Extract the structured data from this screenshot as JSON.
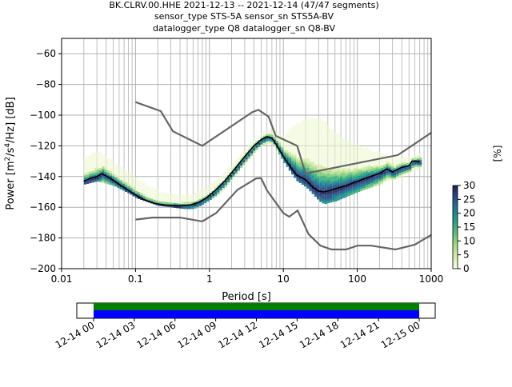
{
  "chart_data": {
    "type": "heatmap",
    "title_lines": [
      "BK.CLRV.00.HHE   2021-12-13 -- 2021-12-14  (47/47 segments)",
      "sensor_type STS-5A sensor_sn STS5A-BV",
      "datalogger_type Q8 datalogger_sn Q8-BV"
    ],
    "xlabel": "Period [s]",
    "ylabel_parts": [
      "Power [m",
      "2",
      "/s",
      "4",
      "/Hz] [dB]"
    ],
    "xscale": "log",
    "xlim": [
      0.01,
      1000
    ],
    "ylim": [
      -200,
      -50
    ],
    "x_ticks": [
      {
        "value": 0.01,
        "label": "0.01"
      },
      {
        "value": 0.1,
        "label": "0.1"
      },
      {
        "value": 1,
        "label": "1"
      },
      {
        "value": 10,
        "label": "10"
      },
      {
        "value": 100,
        "label": "100"
      },
      {
        "value": 1000,
        "label": "1000"
      }
    ],
    "y_ticks": [
      {
        "value": -60,
        "label": "−60"
      },
      {
        "value": -80,
        "label": "−80"
      },
      {
        "value": -100,
        "label": "−100"
      },
      {
        "value": -120,
        "label": "−120"
      },
      {
        "value": -140,
        "label": "−140"
      },
      {
        "value": -160,
        "label": "−160"
      },
      {
        "value": -180,
        "label": "−180"
      },
      {
        "value": -200,
        "label": "−200"
      }
    ],
    "grid": true,
    "noise_model_high": [
      [
        0.1,
        -91.5
      ],
      [
        0.22,
        -97.4
      ],
      [
        0.32,
        -110.5
      ],
      [
        0.8,
        -120
      ],
      [
        3.8,
        -98
      ],
      [
        4.6,
        -96.5
      ],
      [
        6.3,
        -101
      ],
      [
        7.9,
        -113.5
      ],
      [
        15.4,
        -120
      ],
      [
        20,
        -138
      ],
      [
        354.8,
        -126
      ],
      [
        1000,
        -111.5
      ]
    ],
    "noise_model_low": [
      [
        0.1,
        -168
      ],
      [
        0.17,
        -166.7
      ],
      [
        0.4,
        -166.7
      ],
      [
        0.8,
        -169.2
      ],
      [
        1.24,
        -163.7
      ],
      [
        2.4,
        -148.6
      ],
      [
        4.3,
        -141.2
      ],
      [
        5,
        -141.1
      ],
      [
        6,
        -149
      ],
      [
        10,
        -163.8
      ],
      [
        12,
        -166.2
      ],
      [
        15.6,
        -162.1
      ],
      [
        21.9,
        -177.5
      ],
      [
        31.6,
        -185
      ],
      [
        45,
        -187.5
      ],
      [
        70,
        -187.5
      ],
      [
        101,
        -185
      ],
      [
        154,
        -185
      ],
      [
        328,
        -187.5
      ],
      [
        600,
        -184.4
      ],
      [
        1000,
        -178
      ]
    ],
    "median": [
      [
        0.02,
        -143
      ],
      [
        0.025,
        -141
      ],
      [
        0.03,
        -140
      ],
      [
        0.035,
        -138
      ],
      [
        0.045,
        -141
      ],
      [
        0.06,
        -145
      ],
      [
        0.08,
        -149
      ],
      [
        0.1,
        -152
      ],
      [
        0.13,
        -155
      ],
      [
        0.18,
        -157.5
      ],
      [
        0.25,
        -158.5
      ],
      [
        0.4,
        -159
      ],
      [
        0.55,
        -158.5
      ],
      [
        0.7,
        -157
      ],
      [
        0.9,
        -154
      ],
      [
        1.2,
        -149
      ],
      [
        1.6,
        -143
      ],
      [
        2.2,
        -135
      ],
      [
        3,
        -127
      ],
      [
        4,
        -120
      ],
      [
        5,
        -116
      ],
      [
        6,
        -114
      ],
      [
        7,
        -115
      ],
      [
        8,
        -119
      ],
      [
        10,
        -127
      ],
      [
        13,
        -135
      ],
      [
        15,
        -139
      ],
      [
        20,
        -142
      ],
      [
        25,
        -147
      ],
      [
        30,
        -149.5
      ],
      [
        35,
        -150
      ],
      [
        40,
        -149.5
      ],
      [
        50,
        -148
      ],
      [
        70,
        -146
      ],
      [
        100,
        -143
      ],
      [
        150,
        -140
      ],
      [
        200,
        -138
      ],
      [
        250,
        -135
      ],
      [
        300,
        -137
      ],
      [
        400,
        -134
      ],
      [
        500,
        -133
      ],
      [
        550,
        -130
      ],
      [
        700,
        -130
      ]
    ],
    "psd_band": [
      [
        0.02,
        -145,
        -128
      ],
      [
        0.03,
        -143,
        -124
      ],
      [
        0.05,
        -146,
        -132
      ],
      [
        0.08,
        -151,
        -138
      ],
      [
        0.1,
        -154,
        -142
      ],
      [
        0.15,
        -157,
        -147
      ],
      [
        0.2,
        -159,
        -150
      ],
      [
        0.3,
        -160,
        -152
      ],
      [
        0.45,
        -161,
        -153
      ],
      [
        0.6,
        -161,
        -152
      ],
      [
        0.8,
        -158,
        -149
      ],
      [
        1,
        -155,
        -146
      ],
      [
        1.4,
        -150,
        -141
      ],
      [
        2,
        -142,
        -133
      ],
      [
        3,
        -132,
        -123
      ],
      [
        4,
        -125,
        -116
      ],
      [
        5,
        -120,
        -112
      ],
      [
        6,
        -118,
        -110
      ],
      [
        7,
        -119,
        -110
      ],
      [
        8,
        -123,
        -112
      ],
      [
        10,
        -131,
        -114
      ],
      [
        13,
        -139,
        -108
      ],
      [
        15,
        -143,
        -106
      ],
      [
        20,
        -147,
        -103
      ],
      [
        25,
        -152,
        -102
      ],
      [
        30,
        -156,
        -103
      ],
      [
        35,
        -158,
        -104
      ],
      [
        40,
        -157,
        -108
      ],
      [
        50,
        -156,
        -112
      ],
      [
        70,
        -153,
        -117
      ],
      [
        100,
        -150,
        -121
      ],
      [
        150,
        -147,
        -123
      ],
      [
        200,
        -145,
        -126
      ],
      [
        300,
        -142,
        -128
      ],
      [
        500,
        -138,
        -128
      ],
      [
        700,
        -135,
        -125
      ]
    ],
    "colorbar": {
      "label": "[%]",
      "ticks": [
        0,
        5,
        10,
        15,
        20,
        25,
        30
      ],
      "range": [
        0,
        30
      ]
    },
    "time_axis": {
      "ticks": [
        "12-14 00",
        "12-14 03",
        "12-14 06",
        "12-14 09",
        "12-14 12",
        "12-14 15",
        "12-14 18",
        "12-14 21",
        "12-15 00"
      ],
      "coverage_color_top": "#008000",
      "coverage_color_bottom": "#0000ff"
    },
    "colors": {
      "median": "#000000",
      "noise_model": "#666666",
      "grid": "#b0b0b0"
    }
  }
}
